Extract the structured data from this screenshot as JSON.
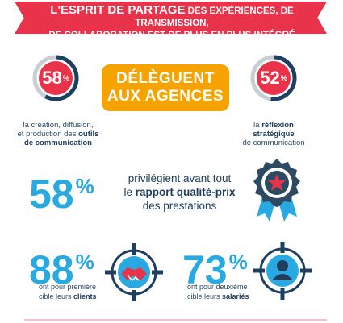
{
  "header": {
    "line1_big": "L'ESPRIT DE PARTAGE",
    "line1_rest": " DES EXPÉRIENCES, DE TRANSMISSION,",
    "line2": "DE COLLABORATION EST DE PLUS EN PLUS INTÉGRÉ"
  },
  "left_gauge": {
    "value": "58",
    "unit": "%",
    "fill_fraction": 0.58,
    "caption_line1": "la création, diffusion,",
    "caption_line2_pre": "et production des ",
    "caption_line2_bold": "outils",
    "caption_line3_bold": "de communication"
  },
  "right_gauge": {
    "value": "52",
    "unit": "%",
    "fill_fraction": 0.52,
    "caption_line1": "la ",
    "caption_line1_bold": "réflexion",
    "caption_line2_bold": "stratégique",
    "caption_line3": "de communication"
  },
  "badge": {
    "line1": "DÉLÈGUENT",
    "line2": "AUX AGENCES"
  },
  "middle": {
    "value": "58",
    "unit": "%",
    "line1": "privilégient avant tout",
    "line2_pre": "le ",
    "line2_bold": "rapport qualité-prix",
    "line3": "des prestations"
  },
  "bottom_left": {
    "value": "88",
    "unit": "%",
    "line1": "ont pour première",
    "line2_pre": "cible leurs ",
    "line2_bold": "clients"
  },
  "bottom_right": {
    "value": "73",
    "unit": "%",
    "line1": "ont pour deuxième",
    "line2_pre": "cible leurs ",
    "line2_bold": "salariés"
  },
  "colors": {
    "red": "#e8334a",
    "navy": "#1f3f60",
    "blue": "#29a9e1",
    "orange": "#f6a300",
    "grey": "#c9ced3"
  }
}
